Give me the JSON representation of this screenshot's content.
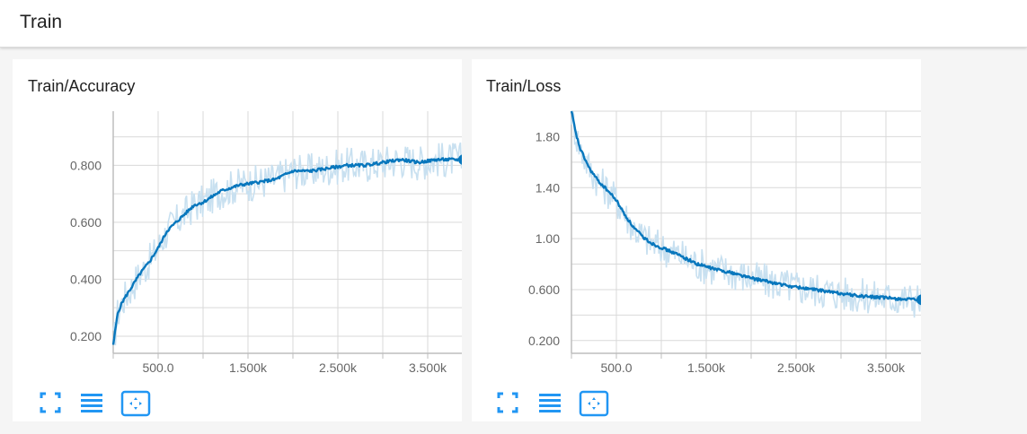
{
  "header": {
    "title": "Train"
  },
  "colors": {
    "line": "#0877bd",
    "band": "#c8e0f0",
    "grid": "#d9d9d9",
    "axis": "#bdbdbd",
    "icon": "#2196f3"
  },
  "toolbar_icons": [
    "fullscreen-icon",
    "lines-icon",
    "fit-domain-icon"
  ],
  "chart_data": [
    {
      "type": "line",
      "title": "Train/Accuracy",
      "xlabel": "",
      "ylabel": "",
      "xlim": [
        0,
        4000
      ],
      "ylim": [
        0.14,
        0.99
      ],
      "x_ticks": [
        500,
        1500,
        2500,
        3500
      ],
      "x_tick_labels": [
        "500.0",
        "1.500k",
        "2.500k",
        "3.500k"
      ],
      "y_ticks": [
        0.2,
        0.4,
        0.6,
        0.8
      ],
      "y_tick_labels": [
        "0.200",
        "0.400",
        "0.600",
        "0.800"
      ],
      "grid": true,
      "series": [
        {
          "smoothed": true,
          "x": [
            0,
            50,
            100,
            200,
            300,
            400,
            500,
            600,
            700,
            800,
            900,
            1000,
            1200,
            1400,
            1600,
            1800,
            2000,
            2200,
            2400,
            2600,
            2800,
            3000,
            3200,
            3400,
            3600,
            3800,
            3900
          ],
          "y": [
            0.17,
            0.28,
            0.32,
            0.37,
            0.42,
            0.46,
            0.51,
            0.57,
            0.6,
            0.63,
            0.66,
            0.67,
            0.71,
            0.73,
            0.74,
            0.75,
            0.78,
            0.78,
            0.79,
            0.8,
            0.8,
            0.81,
            0.82,
            0.81,
            0.82,
            0.82,
            0.82
          ]
        }
      ]
    },
    {
      "type": "line",
      "title": "Train/Loss",
      "xlabel": "",
      "ylabel": "",
      "xlim": [
        0,
        4000
      ],
      "ylim": [
        0.1,
        2.0
      ],
      "x_ticks": [
        500,
        1500,
        2500,
        3500
      ],
      "x_tick_labels": [
        "500.0",
        "1.500k",
        "2.500k",
        "3.500k"
      ],
      "y_ticks": [
        0.2,
        0.6,
        1.0,
        1.4,
        1.8
      ],
      "y_tick_labels": [
        "0.200",
        "0.600",
        "1.00",
        "1.40",
        "1.80"
      ],
      "grid": true,
      "series": [
        {
          "smoothed": true,
          "x": [
            0,
            50,
            100,
            200,
            300,
            400,
            500,
            600,
            700,
            800,
            900,
            1000,
            1200,
            1400,
            1600,
            1800,
            2000,
            2200,
            2400,
            2600,
            2800,
            3000,
            3200,
            3400,
            3600,
            3800,
            3900
          ],
          "y": [
            2.0,
            1.82,
            1.7,
            1.55,
            1.45,
            1.38,
            1.3,
            1.18,
            1.08,
            1.01,
            0.96,
            0.93,
            0.87,
            0.8,
            0.76,
            0.73,
            0.69,
            0.66,
            0.63,
            0.61,
            0.59,
            0.57,
            0.55,
            0.54,
            0.53,
            0.52,
            0.52
          ]
        }
      ]
    }
  ]
}
